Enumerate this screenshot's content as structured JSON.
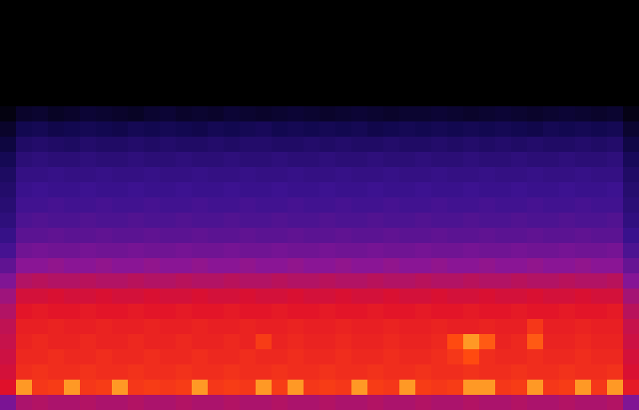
{
  "chart_data": {
    "type": "heatmap",
    "tick_labels": false,
    "zlim": [
      0,
      100
    ],
    "cells": [
      [
        0,
        0,
        0,
        0,
        0,
        0,
        0,
        0,
        0,
        0,
        0,
        0,
        0,
        0,
        0,
        0,
        0,
        0,
        0,
        0,
        0,
        0,
        0,
        0,
        0,
        0,
        0,
        0,
        0,
        0,
        0,
        0,
        0,
        0,
        0,
        0,
        0,
        0,
        0,
        0
      ],
      [
        0,
        0,
        0,
        0,
        0,
        0,
        0,
        0,
        0,
        0,
        0,
        0,
        0,
        0,
        0,
        0,
        0,
        0,
        0,
        0,
        0,
        0,
        0,
        0,
        0,
        0,
        0,
        0,
        0,
        0,
        0,
        0,
        0,
        0,
        0,
        0,
        0,
        0,
        0,
        0
      ],
      [
        0,
        0,
        0,
        0,
        0,
        0,
        0,
        0,
        0,
        0,
        0,
        0,
        0,
        0,
        0,
        0,
        0,
        0,
        0,
        0,
        0,
        0,
        0,
        0,
        0,
        0,
        0,
        0,
        0,
        0,
        0,
        0,
        0,
        0,
        0,
        0,
        0,
        0,
        0,
        0
      ],
      [
        0,
        0,
        0,
        0,
        0,
        0,
        0,
        0,
        0,
        0,
        0,
        0,
        0,
        0,
        0,
        0,
        0,
        0,
        0,
        0,
        0,
        0,
        0,
        0,
        0,
        0,
        0,
        0,
        0,
        0,
        0,
        0,
        0,
        0,
        0,
        0,
        0,
        0,
        0,
        0
      ],
      [
        0,
        0,
        0,
        0,
        0,
        0,
        0,
        0,
        0,
        0,
        0,
        0,
        0,
        0,
        0,
        0,
        0,
        0,
        0,
        0,
        0,
        0,
        0,
        0,
        0,
        0,
        0,
        0,
        0,
        0,
        0,
        0,
        0,
        0,
        0,
        0,
        0,
        0,
        0,
        0
      ],
      [
        0,
        0,
        0,
        0,
        0,
        0,
        0,
        0,
        0,
        0,
        0,
        0,
        0,
        0,
        0,
        0,
        0,
        0,
        0,
        0,
        0,
        0,
        0,
        0,
        0,
        0,
        0,
        0,
        0,
        0,
        0,
        0,
        0,
        0,
        0,
        0,
        0,
        0,
        0,
        0
      ],
      [
        0,
        0,
        0,
        0,
        0,
        0,
        0,
        0,
        0,
        0,
        0,
        0,
        0,
        0,
        0,
        0,
        0,
        0,
        0,
        0,
        0,
        0,
        0,
        0,
        0,
        0,
        0,
        0,
        0,
        0,
        0,
        0,
        0,
        0,
        0,
        0,
        0,
        0,
        0,
        0
      ],
      [
        3,
        8,
        9,
        7,
        8,
        10,
        9,
        8,
        7,
        9,
        10,
        8,
        9,
        8,
        10,
        9,
        8,
        9,
        10,
        9,
        8,
        9,
        10,
        9,
        8,
        9,
        9,
        10,
        9,
        8,
        9,
        10,
        9,
        8,
        9,
        10,
        9,
        8,
        9,
        4
      ],
      [
        8,
        15,
        16,
        14,
        15,
        16,
        15,
        14,
        16,
        15,
        16,
        15,
        14,
        16,
        15,
        16,
        17,
        15,
        16,
        15,
        16,
        15,
        16,
        14,
        15,
        16,
        15,
        16,
        15,
        16,
        15,
        16,
        15,
        14,
        16,
        15,
        16,
        15,
        16,
        9
      ],
      [
        12,
        20,
        21,
        20,
        19,
        21,
        20,
        20,
        21,
        20,
        21,
        20,
        20,
        21,
        20,
        21,
        21,
        20,
        20,
        21,
        20,
        21,
        20,
        20,
        21,
        20,
        20,
        21,
        20,
        21,
        20,
        21,
        20,
        21,
        20,
        20,
        21,
        20,
        21,
        13
      ],
      [
        16,
        24,
        25,
        24,
        24,
        25,
        24,
        24,
        25,
        24,
        24,
        25,
        24,
        24,
        25,
        24,
        24,
        25,
        24,
        24,
        25,
        24,
        24,
        25,
        24,
        24,
        25,
        24,
        24,
        25,
        24,
        24,
        25,
        24,
        24,
        25,
        24,
        24,
        25,
        17
      ],
      [
        19,
        27,
        27,
        28,
        27,
        27,
        28,
        27,
        27,
        28,
        27,
        27,
        28,
        27,
        27,
        28,
        27,
        27,
        28,
        27,
        27,
        28,
        27,
        27,
        28,
        27,
        27,
        28,
        27,
        27,
        28,
        27,
        27,
        28,
        27,
        27,
        28,
        27,
        27,
        20
      ],
      [
        21,
        29,
        30,
        29,
        29,
        30,
        29,
        29,
        30,
        29,
        29,
        30,
        29,
        29,
        30,
        29,
        29,
        30,
        29,
        29,
        30,
        29,
        29,
        30,
        29,
        29,
        30,
        29,
        29,
        30,
        29,
        29,
        30,
        29,
        29,
        30,
        29,
        29,
        30,
        22
      ],
      [
        23,
        31,
        31,
        32,
        31,
        31,
        32,
        31,
        31,
        32,
        31,
        31,
        32,
        31,
        31,
        32,
        31,
        31,
        32,
        31,
        31,
        32,
        31,
        31,
        32,
        31,
        31,
        32,
        31,
        31,
        32,
        31,
        31,
        32,
        31,
        31,
        32,
        31,
        31,
        24
      ],
      [
        25,
        33,
        34,
        33,
        33,
        34,
        33,
        33,
        34,
        33,
        33,
        34,
        33,
        33,
        34,
        33,
        33,
        34,
        33,
        33,
        34,
        33,
        33,
        34,
        33,
        33,
        34,
        33,
        33,
        34,
        33,
        33,
        34,
        33,
        33,
        34,
        33,
        33,
        34,
        26
      ],
      [
        28,
        36,
        36,
        37,
        36,
        36,
        37,
        36,
        36,
        37,
        36,
        36,
        37,
        36,
        36,
        37,
        36,
        36,
        37,
        36,
        36,
        37,
        36,
        36,
        37,
        36,
        36,
        37,
        36,
        36,
        37,
        36,
        36,
        37,
        36,
        36,
        37,
        36,
        36,
        29
      ],
      [
        32,
        40,
        41,
        40,
        40,
        41,
        40,
        40,
        41,
        40,
        40,
        41,
        40,
        40,
        41,
        40,
        40,
        41,
        40,
        40,
        41,
        40,
        40,
        41,
        40,
        40,
        41,
        40,
        40,
        41,
        40,
        40,
        41,
        40,
        40,
        41,
        40,
        40,
        41,
        33
      ],
      [
        37,
        45,
        45,
        46,
        45,
        45,
        46,
        45,
        45,
        46,
        45,
        45,
        46,
        45,
        45,
        46,
        45,
        45,
        46,
        45,
        45,
        46,
        45,
        45,
        46,
        45,
        45,
        46,
        45,
        45,
        46,
        45,
        45,
        46,
        45,
        45,
        46,
        45,
        45,
        38
      ],
      [
        43,
        51,
        52,
        51,
        51,
        52,
        51,
        51,
        52,
        51,
        51,
        52,
        51,
        51,
        52,
        51,
        51,
        52,
        51,
        51,
        52,
        51,
        51,
        52,
        51,
        51,
        52,
        51,
        51,
        52,
        51,
        51,
        52,
        51,
        51,
        52,
        51,
        51,
        52,
        44
      ],
      [
        48,
        56,
        56,
        57,
        56,
        56,
        57,
        56,
        56,
        57,
        56,
        56,
        57,
        56,
        56,
        57,
        56,
        56,
        57,
        56,
        56,
        57,
        56,
        56,
        57,
        56,
        56,
        57,
        56,
        56,
        57,
        56,
        56,
        57,
        56,
        56,
        57,
        56,
        56,
        49
      ],
      [
        51,
        59,
        60,
        59,
        59,
        60,
        59,
        59,
        60,
        59,
        59,
        60,
        59,
        59,
        60,
        59,
        59,
        60,
        59,
        59,
        60,
        59,
        59,
        60,
        59,
        59,
        60,
        59,
        59,
        60,
        59,
        59,
        60,
        59,
        59,
        60,
        59,
        59,
        60,
        52
      ],
      [
        53,
        61,
        61,
        62,
        61,
        61,
        62,
        61,
        61,
        62,
        61,
        61,
        62,
        61,
        61,
        62,
        61,
        61,
        62,
        61,
        61,
        62,
        61,
        61,
        62,
        61,
        61,
        62,
        61,
        61,
        62,
        61,
        61,
        66,
        61,
        61,
        62,
        61,
        61,
        54
      ],
      [
        54,
        62,
        63,
        62,
        62,
        63,
        62,
        62,
        63,
        62,
        62,
        63,
        62,
        62,
        63,
        62,
        67,
        62,
        63,
        62,
        62,
        63,
        62,
        62,
        63,
        62,
        62,
        63,
        70,
        80,
        72,
        62,
        63,
        72,
        62,
        62,
        63,
        62,
        62,
        55
      ],
      [
        55,
        63,
        63,
        64,
        63,
        63,
        64,
        63,
        63,
        64,
        63,
        63,
        64,
        63,
        63,
        64,
        63,
        63,
        64,
        63,
        63,
        64,
        63,
        63,
        64,
        63,
        63,
        64,
        66,
        70,
        64,
        63,
        63,
        64,
        63,
        63,
        64,
        63,
        63,
        56
      ],
      [
        56,
        64,
        65,
        64,
        64,
        65,
        64,
        64,
        65,
        64,
        64,
        65,
        64,
        64,
        65,
        64,
        64,
        65,
        64,
        64,
        65,
        64,
        64,
        65,
        64,
        64,
        65,
        64,
        64,
        65,
        64,
        64,
        65,
        64,
        64,
        65,
        64,
        64,
        65,
        57
      ],
      [
        58,
        80,
        66,
        67,
        80,
        66,
        67,
        80,
        66,
        67,
        66,
        67,
        80,
        66,
        67,
        66,
        80,
        67,
        80,
        66,
        67,
        66,
        80,
        67,
        66,
        80,
        67,
        66,
        67,
        80,
        80,
        66,
        67,
        80,
        66,
        67,
        80,
        66,
        80,
        60
      ],
      [
        42,
        50,
        51,
        50,
        50,
        51,
        50,
        50,
        51,
        50,
        50,
        51,
        50,
        50,
        51,
        50,
        50,
        51,
        50,
        50,
        51,
        50,
        50,
        51,
        50,
        50,
        51,
        50,
        50,
        51,
        50,
        50,
        51,
        50,
        50,
        51,
        50,
        50,
        51,
        43
      ]
    ]
  }
}
